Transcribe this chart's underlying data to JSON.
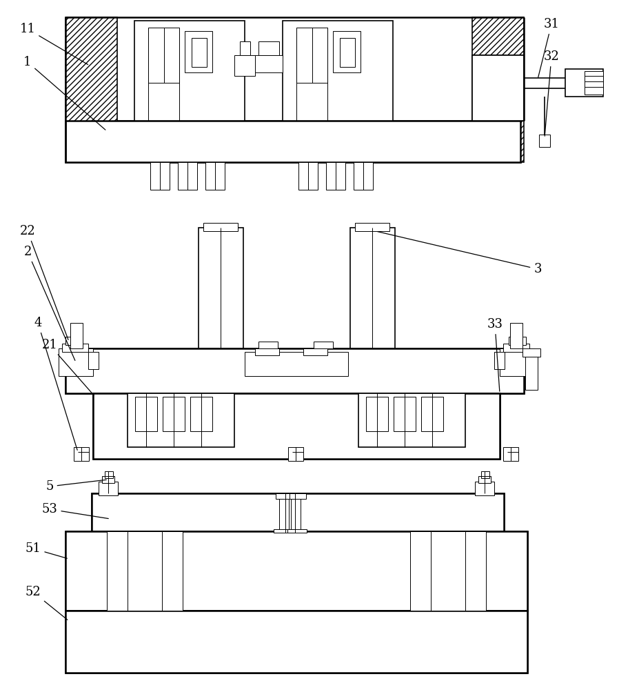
{
  "bg_color": "#ffffff",
  "fig_width": 8.98,
  "fig_height": 10.0,
  "dpi": 100
}
